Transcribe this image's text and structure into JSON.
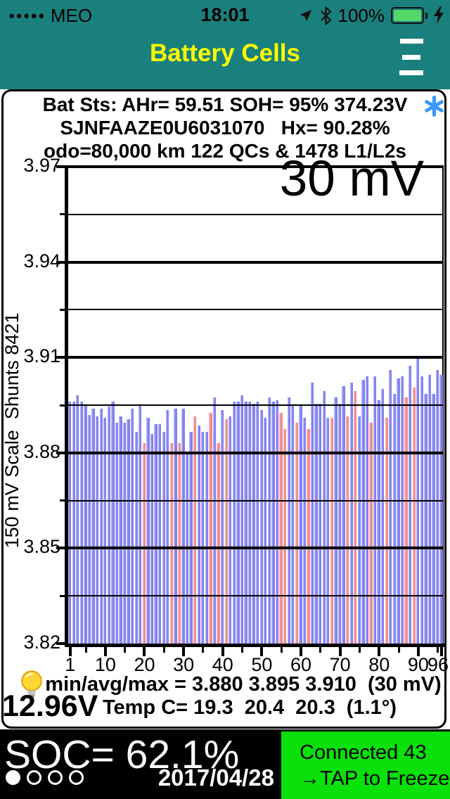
{
  "status_bar": {
    "signal_dots": "●●●●●",
    "carrier": "MEO",
    "time": "18:01",
    "battery_percent": "100%",
    "battery_color": "#54d769"
  },
  "nav": {
    "title": "Battery Cells",
    "title_color": "#ffff00",
    "bar_color": "#1a807d"
  },
  "info": {
    "line1": "Bat Sts: AHr= 59.51 SOH= 95% 374.23V",
    "line2": "SJNFAAZE0U6031070   Hx= 90.28%",
    "line3": "odo=80,000 km 122 QCs & 1478 L1/L2s",
    "asterisk_color": "#3898fd"
  },
  "chart_data": {
    "type": "bar",
    "overlay_label": "30 mV",
    "ylabel": "150 mV Scale  Shunts 8421",
    "ylim": [
      3.82,
      3.97
    ],
    "yticks": [
      "3.97",
      "3.94",
      "3.91",
      "3.88",
      "3.85",
      "3.82"
    ],
    "xticks": [
      1,
      10,
      20,
      30,
      40,
      50,
      60,
      70,
      80,
      90,
      96
    ],
    "x_count": 96,
    "grid": true,
    "bar_color": "#8282f0",
    "shunt_bar_color": "#f28b8b",
    "shunt_cells": [
      20,
      27,
      29,
      33,
      37,
      39,
      41,
      55,
      56,
      59,
      62,
      68,
      72,
      74,
      78,
      82,
      87,
      89
    ],
    "values": [
      3.896,
      3.896,
      3.898,
      3.896,
      3.895,
      3.892,
      3.894,
      3.8915,
      3.894,
      3.891,
      3.8945,
      3.896,
      3.8895,
      3.8915,
      3.8895,
      3.8905,
      3.894,
      3.8865,
      3.895,
      3.883,
      3.891,
      3.886,
      3.889,
      3.889,
      3.8865,
      3.8935,
      3.883,
      3.894,
      3.883,
      3.894,
      3.88,
      3.8865,
      3.8915,
      3.8885,
      3.8865,
      3.8865,
      3.8925,
      3.8975,
      3.883,
      3.8935,
      3.8905,
      3.8915,
      3.896,
      3.896,
      3.898,
      3.896,
      3.896,
      3.8955,
      3.896,
      3.8935,
      3.891,
      3.8975,
      3.896,
      3.8965,
      3.8925,
      3.8875,
      3.8975,
      3.895,
      3.8895,
      3.895,
      3.891,
      3.8875,
      3.902,
      3.8955,
      3.8955,
      3.8995,
      3.891,
      3.891,
      3.8975,
      3.8955,
      3.901,
      3.8915,
      3.902,
      3.8995,
      3.8915,
      3.903,
      3.904,
      3.8895,
      3.904,
      3.8965,
      3.9,
      3.891,
      3.906,
      3.8985,
      3.9035,
      3.904,
      3.8975,
      3.9075,
      3.9005,
      3.91,
      3.904,
      3.8985,
      3.9045,
      3.8985,
      3.906,
      3.9045
    ]
  },
  "stats": {
    "min_avg_max": "min/avg/max = 3.880 3.895 3.910  (30 mV)",
    "aux_battery_voltage": "12.96V",
    "temps": "Temp C= 19.3  20.4  20.3  (1.1°)"
  },
  "footer": {
    "soc": "SOC= 62.1%",
    "date": "2017/04/28",
    "page_dots": [
      true,
      false,
      false,
      false
    ],
    "button": {
      "line1": "Connected 43",
      "line2": "→TAP to Freeze",
      "color": "#0ae00a"
    }
  }
}
